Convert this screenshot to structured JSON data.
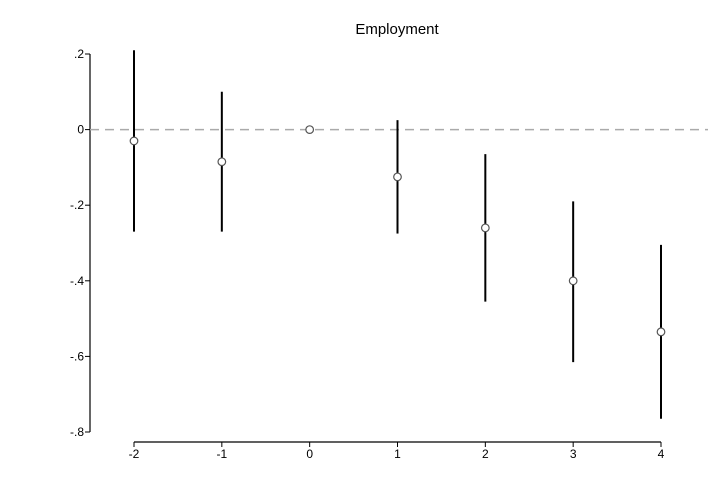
{
  "chart_data": {
    "type": "scatter",
    "title": "Employment",
    "xlabel": "",
    "ylabel": "",
    "x_ticks": [
      "-2",
      "-1",
      "0",
      "1",
      "2",
      "3",
      "4"
    ],
    "y_ticks": [
      ".2",
      "0",
      "-.2",
      "-.4",
      "-.6",
      "-.8"
    ],
    "y_tick_values": [
      0.2,
      0,
      -0.2,
      -0.4,
      -0.6,
      -0.8
    ],
    "xlim": [
      -2,
      4
    ],
    "ylim": [
      -0.8,
      0.2
    ],
    "reference_line_y": 0,
    "grid": false,
    "points": [
      {
        "x": -2,
        "estimate": -0.03,
        "ci_low": -0.27,
        "ci_high": 0.21
      },
      {
        "x": -1,
        "estimate": -0.085,
        "ci_low": -0.27,
        "ci_high": 0.1
      },
      {
        "x": 0,
        "estimate": 0.0,
        "ci_low": 0.0,
        "ci_high": 0.0
      },
      {
        "x": 1,
        "estimate": -0.125,
        "ci_low": -0.275,
        "ci_high": 0.025
      },
      {
        "x": 2,
        "estimate": -0.26,
        "ci_low": -0.455,
        "ci_high": -0.065
      },
      {
        "x": 3,
        "estimate": -0.4,
        "ci_low": -0.615,
        "ci_high": -0.19
      },
      {
        "x": 4,
        "estimate": -0.535,
        "ci_low": -0.765,
        "ci_high": -0.305
      }
    ],
    "colors": {
      "marker": "#555555",
      "ci": "#000000",
      "axis": "#000000",
      "reference": "#aaaaaa"
    }
  }
}
